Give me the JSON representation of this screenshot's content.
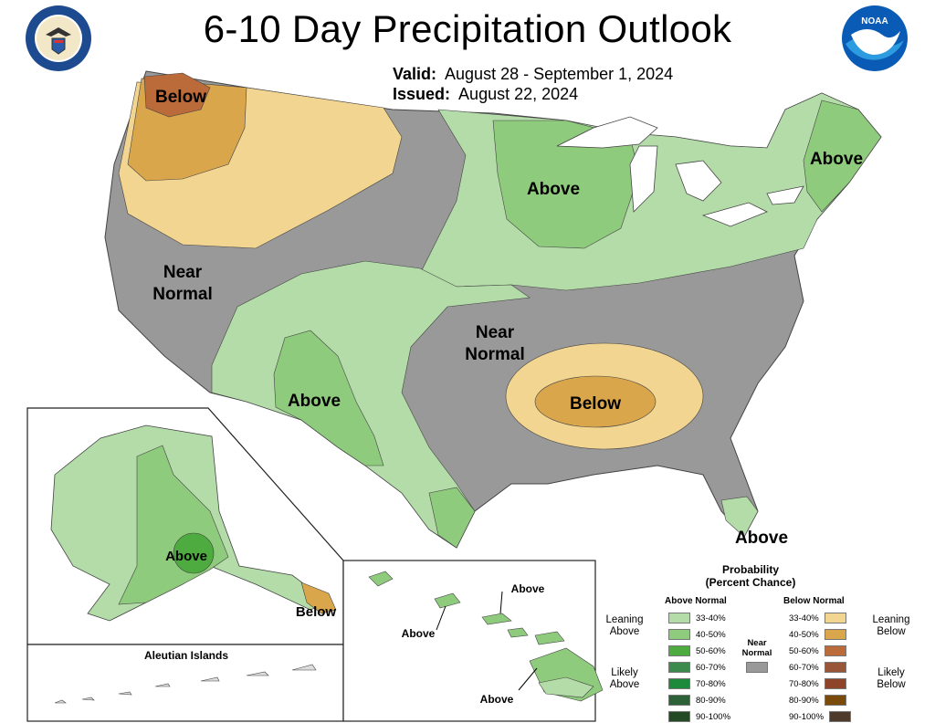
{
  "title": "6-10 Day Precipitation Outlook",
  "valid": {
    "label": "Valid:",
    "value": "August 28 - September 1, 2024"
  },
  "issued": {
    "label": "Issued:",
    "value": "August 22, 2024"
  },
  "logos": {
    "left": "department-of-commerce-seal",
    "right": "noaa-logo",
    "noaa_text": "NOAA"
  },
  "map_labels": {
    "below_nw": "Below",
    "near_normal_west_1": "Near",
    "near_normal_west_2": "Normal",
    "above_midwest": "Above",
    "above_northeast": "Above",
    "near_normal_south_1": "Near",
    "near_normal_south_2": "Normal",
    "above_southwest": "Above",
    "below_tennessee": "Below",
    "above_florida": "Above",
    "above_alaska": "Above",
    "below_alaska_se": "Below",
    "aleutian_islands": "Aleutian Islands",
    "hawaii_above_1": "Above",
    "hawaii_above_2": "Above",
    "hawaii_above_3": "Above"
  },
  "legend": {
    "title_line1": "Probability",
    "title_line2": "(Percent Chance)",
    "above_header": "Above Normal",
    "below_header": "Below Normal",
    "near_line1": "Near",
    "near_line2": "Normal",
    "near_color": "#999999",
    "leaning_above_1": "Leaning",
    "leaning_above_2": "Above",
    "likely_above_1": "Likely",
    "likely_above_2": "Above",
    "leaning_below_1": "Leaning",
    "leaning_below_2": "Below",
    "likely_below_1": "Likely",
    "likely_below_2": "Below",
    "above": [
      {
        "range": "33-40%",
        "color": "#b3dca8"
      },
      {
        "range": "40-50%",
        "color": "#8fcb7c"
      },
      {
        "range": "50-60%",
        "color": "#4eab3f"
      },
      {
        "range": "60-70%",
        "color": "#3c8a4d"
      },
      {
        "range": "70-80%",
        "color": "#1c8a3a"
      },
      {
        "range": "80-90%",
        "color": "#2d6138"
      },
      {
        "range": "90-100%",
        "color": "#234a24"
      }
    ],
    "below": [
      {
        "range": "33-40%",
        "color": "#f2d591"
      },
      {
        "range": "40-50%",
        "color": "#d9a64c"
      },
      {
        "range": "50-60%",
        "color": "#bb6a3a"
      },
      {
        "range": "60-70%",
        "color": "#995538"
      },
      {
        "range": "70-80%",
        "color": "#8e4428"
      },
      {
        "range": "80-90%",
        "color": "#7a4a0a"
      },
      {
        "range": "90-100%",
        "color": "#4d3a2a"
      }
    ]
  }
}
